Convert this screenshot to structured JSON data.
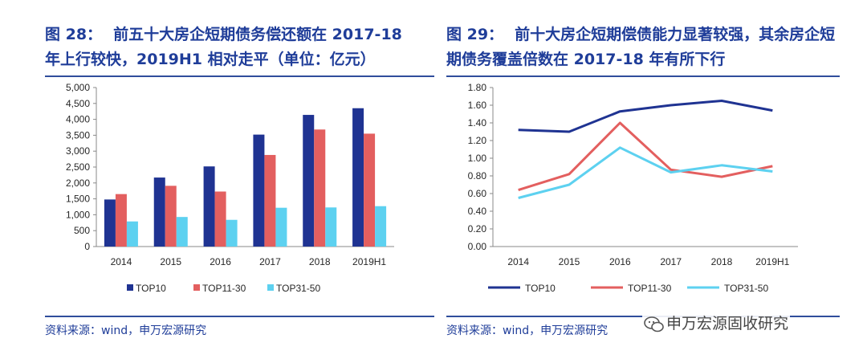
{
  "left": {
    "title_num": "图 28：",
    "title_text": "前五十大房企短期债务偿还额在 2017-18 年上行较快，2019H1 相对走平（单位：亿元）",
    "source": "资料来源：wind，申万宏源研究"
  },
  "right": {
    "title_num": "图 29：",
    "title_text": "前十大房企短期偿债能力显著较强，其余房企短期债务覆盖倍数在 2017-18 年有所下行",
    "source": "资料来源：wind，申万宏源研究"
  },
  "watermark": "申万宏源固收研究",
  "colors": {
    "title": "#1f3d99",
    "top10": "#1f3392",
    "top11_30": "#e35f5f",
    "top31_50": "#5dd1f0"
  },
  "chart_data": [
    {
      "type": "bar",
      "categories": [
        "2014",
        "2015",
        "2016",
        "2017",
        "2018",
        "2019H1"
      ],
      "series": [
        {
          "name": "TOP10",
          "values": [
            1480,
            2170,
            2520,
            3520,
            4140,
            4350
          ]
        },
        {
          "name": "TOP11-30",
          "values": [
            1650,
            1910,
            1730,
            2880,
            3680,
            3550
          ]
        },
        {
          "name": "TOP31-50",
          "values": [
            790,
            930,
            840,
            1220,
            1230,
            1270
          ]
        }
      ],
      "yticks": [
        "0",
        "500",
        "1,000",
        "1,500",
        "2,000",
        "2,500",
        "3,000",
        "3,500",
        "4,000",
        "4,500",
        "5,000"
      ],
      "ylim": [
        0,
        5000
      ],
      "legend": "bottom",
      "grid": false
    },
    {
      "type": "line",
      "categories": [
        "2014",
        "2015",
        "2016",
        "2017",
        "2018",
        "2019H1"
      ],
      "series": [
        {
          "name": "TOP10",
          "values": [
            1.32,
            1.3,
            1.53,
            1.6,
            1.65,
            1.54
          ]
        },
        {
          "name": "TOP11-30",
          "values": [
            0.64,
            0.82,
            1.4,
            0.87,
            0.79,
            0.91
          ]
        },
        {
          "name": "TOP31-50",
          "values": [
            0.55,
            0.7,
            1.12,
            0.84,
            0.92,
            0.85
          ]
        }
      ],
      "yticks": [
        "0.00",
        "0.20",
        "0.40",
        "0.60",
        "0.80",
        "1.00",
        "1.20",
        "1.40",
        "1.60",
        "1.80"
      ],
      "ylim": [
        0,
        1.8
      ],
      "legend": "bottom",
      "grid": false
    }
  ]
}
